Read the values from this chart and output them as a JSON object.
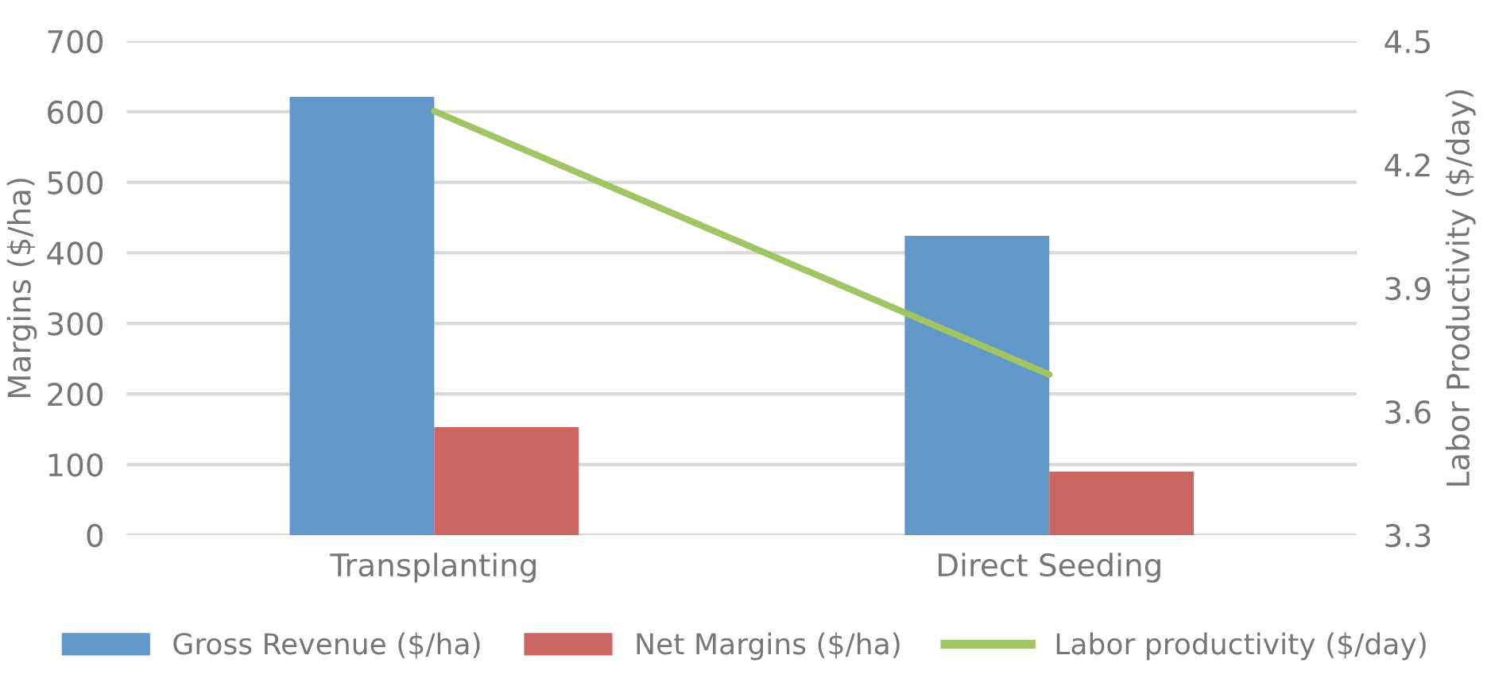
{
  "chart_data": {
    "type": "bar",
    "ylabel": "Margins ($/ha)",
    "y2label": "Labor Productivity ($/day)",
    "categories": [
      "Transplanting",
      "Direct Seeding"
    ],
    "series": [
      {
        "name": "Gross Revenue ($/ha)",
        "color": "#6297c9",
        "values": [
          621,
          424
        ]
      },
      {
        "name": "Net Margins ($/ha)",
        "color": "#cc6660",
        "values": [
          153,
          90
        ]
      },
      {
        "name": "Labor productivity ($/day)",
        "color": "#a2c563",
        "values": [
          4.33,
          3.69
        ],
        "type": "line",
        "axis": "y2"
      }
    ],
    "ylim": [
      0,
      700
    ],
    "yticks": [
      0,
      100,
      200,
      300,
      400,
      500,
      600,
      700
    ],
    "y2lim": [
      3.3,
      4.5
    ],
    "y2ticks": [
      {
        "value": 3.3,
        "label": "3.3"
      },
      {
        "value": 3.6,
        "label": "3.6"
      },
      {
        "value": 3.9,
        "label": "3.9"
      },
      {
        "value": 4.2,
        "label": "4.2"
      },
      {
        "value": 4.5,
        "label": "4.5"
      }
    ],
    "grid": "y",
    "legend": "bottom",
    "marker": "none",
    "line_style": "solid"
  }
}
